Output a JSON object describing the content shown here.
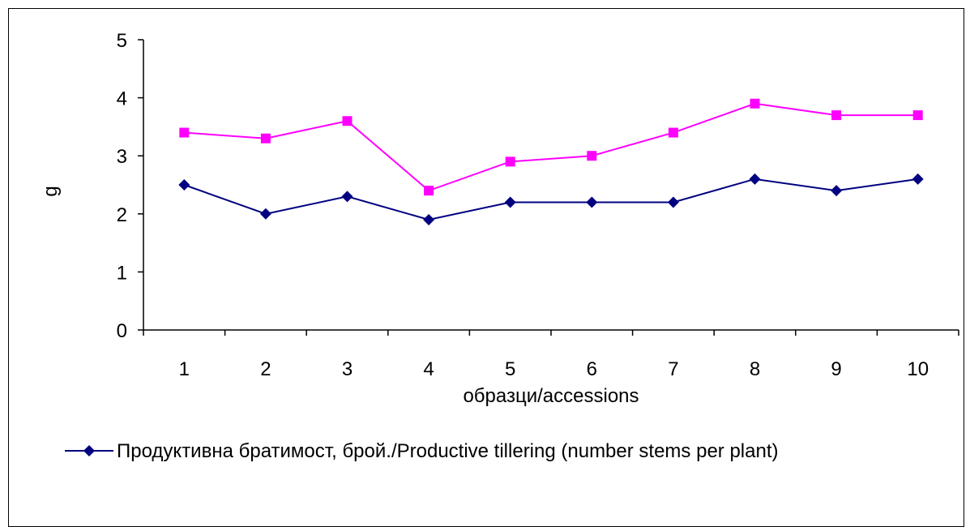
{
  "chart_data": {
    "type": "line",
    "categories": [
      "1",
      "2",
      "3",
      "4",
      "5",
      "6",
      "7",
      "8",
      "9",
      "10"
    ],
    "xlabel": "образци/accessions",
    "ylabel": "g",
    "ylim": [
      0,
      5
    ],
    "yticks": [
      "0",
      "1",
      "2",
      "3",
      "4",
      "5"
    ],
    "grid": false,
    "legend_position": "bottom",
    "series": [
      {
        "name": "Продуктивна братимост, брой./Productive tillering (number stems per plant)",
        "color": "#000080",
        "marker": "diamond",
        "values": [
          2.5,
          2.0,
          2.3,
          1.9,
          2.2,
          2.2,
          2.2,
          2.6,
          2.4,
          2.6
        ]
      },
      {
        "color": "#ff00ff",
        "marker": "square",
        "values": [
          3.4,
          3.3,
          3.6,
          2.4,
          2.9,
          3.0,
          3.4,
          3.9,
          3.7,
          3.7
        ]
      }
    ]
  }
}
